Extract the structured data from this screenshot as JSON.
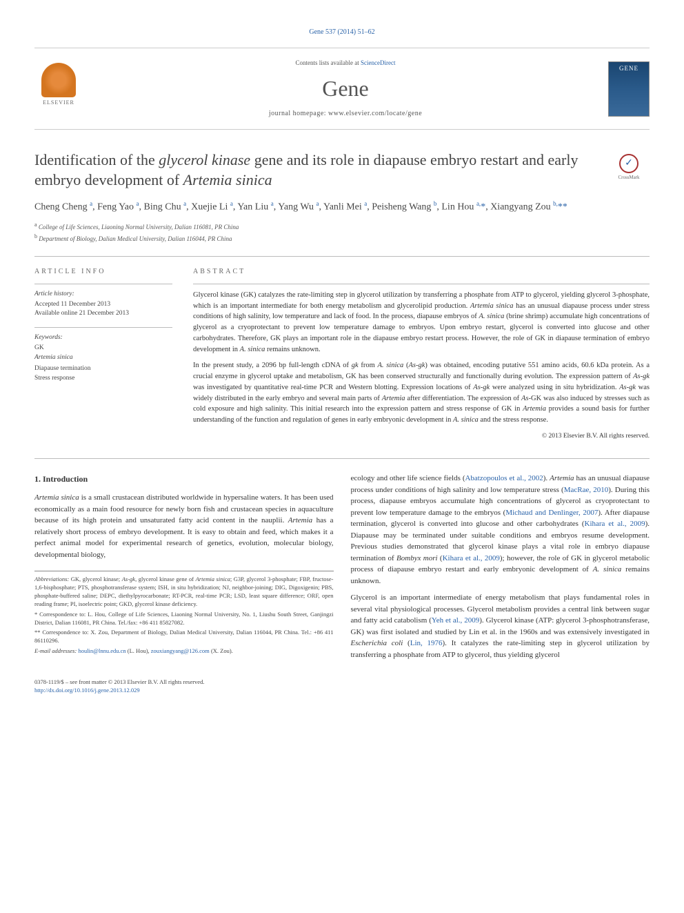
{
  "journalRef": "Gene 537 (2014) 51–62",
  "masthead": {
    "contentsPrefix": "Contents lists available at ",
    "contentsLink": "ScienceDirect",
    "journalTitle": "Gene",
    "homepage": "journal homepage: www.elsevier.com/locate/gene",
    "publisherName": "ELSEVIER"
  },
  "article": {
    "titleParts": [
      "Identification of the ",
      "glycerol kinase",
      " gene and its role in diapause embryo restart and early embryo development of ",
      "Artemia sinica"
    ],
    "crossmarkLabel": "CrossMark",
    "authorsHtml": "Cheng Cheng <sup>a</sup>, Feng Yao <sup>a</sup>, Bing Chu <sup>a</sup>, Xuejie Li <sup>a</sup>, Yan Liu <sup>a</sup>, Yang Wu <sup>a</sup>, Yanli Mei <sup>a</sup>, Peisheng Wang <sup>b</sup>, Lin Hou <sup>a,</sup><span class='corr'>*</span>, Xiangyang Zou <sup>b,</sup><span class='corr'>**</span>",
    "affiliations": [
      {
        "sup": "a",
        "text": "College of Life Sciences, Liaoning Normal University, Dalian 116081, PR China"
      },
      {
        "sup": "b",
        "text": "Department of Biology, Dalian Medical University, Dalian 116044, PR China"
      }
    ]
  },
  "articleInfoLabel": "ARTICLE INFO",
  "abstractLabel": "ABSTRACT",
  "history": {
    "heading": "Article history:",
    "accepted": "Accepted 11 December 2013",
    "online": "Available online 21 December 2013"
  },
  "keywords": {
    "heading": "Keywords:",
    "items": [
      "GK",
      "Artemia sinica",
      "Diapause termination",
      "Stress response"
    ]
  },
  "abstract": {
    "para1": "Glycerol kinase (GK) catalyzes the rate-limiting step in glycerol utilization by transferring a phosphate from ATP to glycerol, yielding glycerol 3-phosphate, which is an important intermediate for both energy metabolism and glycerolipid production. <em>Artemia sinica</em> has an unusual diapause process under stress conditions of high salinity, low temperature and lack of food. In the process, diapause embryos of <em>A. sinica</em> (brine shrimp) accumulate high concentrations of glycerol as a cryoprotectant to prevent low temperature damage to embryos. Upon embryo restart, glycerol is converted into glucose and other carbohydrates. Therefore, GK plays an important role in the diapause embryo restart process. However, the role of GK in diapause termination of embryo development in <em>A. sinica</em> remains unknown.",
    "para2": "In the present study, a 2096 bp full-length cDNA of <em>gk</em> from <em>A. sinica</em> (<em>As-gk</em>) was obtained, encoding putative 551 amino acids, 60.6 kDa protein. As a crucial enzyme in glycerol uptake and metabolism, GK has been conserved structurally and functionally during evolution. The expression pattern of <em>As-gk</em> was investigated by quantitative real-time PCR and Western blotting. Expression locations of <em>As-gk</em> were analyzed using in situ hybridization. <em>As-gk</em> was widely distributed in the early embryo and several main parts of <em>Artemia</em> after differentiation. The expression of <em>As</em>-GK was also induced by stresses such as cold exposure and high salinity. This initial research into the expression pattern and stress response of GK in <em>Artemia</em> provides a sound basis for further understanding of the function and regulation of genes in early embryonic development in <em>A. sinica</em> and the stress response.",
    "copyright": "© 2013 Elsevier B.V. All rights reserved."
  },
  "introHeading": "1. Introduction",
  "body": {
    "leftPara": "<em>Artemia sinica</em> is a small crustacean distributed worldwide in hypersaline waters. It has been used economically as a main food resource for newly born fish and crustacean species in aquaculture because of its high protein and unsaturated fatty acid content in the nauplii. <em>Artemia</em> has a relatively short process of embryo development. It is easy to obtain and feed, which makes it a perfect animal model for experimental research of genetics, evolution, molecular biology, developmental biology,",
    "rightPara1": "ecology and other life science fields (<a href='#'>Abatzopoulos et al., 2002</a>). <em>Artemia</em> has an unusual diapause process under conditions of high salinity and low temperature stress (<a href='#'>MacRae, 2010</a>). During this process, diapause embryos accumulate high concentrations of glycerol as cryoprotectant to prevent low temperature damage to the embryos (<a href='#'>Michaud and Denlinger, 2007</a>). After diapause termination, glycerol is converted into glucose and other carbohydrates (<a href='#'>Kihara et al., 2009</a>). Diapause may be terminated under suitable conditions and embryos resume development. Previous studies demonstrated that glycerol kinase plays a vital role in embryo diapause termination of <em>Bombyx mori</em> (<a href='#'>Kihara et al., 2009</a>); however, the role of GK in glycerol metabolic process of diapause embryo restart and early embryonic development of <em>A. sinica</em> remains unknown.",
    "rightPara2": "Glycerol is an important intermediate of energy metabolism that plays fundamental roles in several vital physiological processes. Glycerol metabolism provides a central link between sugar and fatty acid catabolism (<a href='#'>Yeh et al., 2009</a>). Glycerol kinase (ATP: glycerol 3-phosphotransferase, GK) was first isolated and studied by Lin et al. in the 1960s and was extensively investigated in <em>Escherichia coli</em> (<a href='#'>Lin, 1976</a>). It catalyzes the rate-limiting step in glycerol utilization by transferring a phosphate from ATP to glycerol, thus yielding glycerol"
  },
  "footnotes": {
    "abbrev": "<em>Abbreviations:</em> GK, glycerol kinase; <em>As-gk</em>, glycerol kinase gene of <em>Artemia sinica</em>; G3P, glycerol 3-phosphate; FBP, fructose-1,6-bisphosphate; PTS, phosphotransferase system; ISH, in situ hybridization; NJ, neighbor-joining; DIG, Digoxigenin; PBS, phosphate-buffered saline; DEPC, diethylpyrocarbonate; RT-PCR, real-time PCR; LSD, least square difference; ORF, open reading frame; PI, isoelectric point; GKD, glycerol kinase deficiency.",
    "corr1": "* Correspondence to: L. Hou, College of Life Sciences, Liaoning Normal University, No. 1, Liushu South Street, Ganjingzi District, Dalian 116081, PR China. Tel./fax: +86 411 85827082.",
    "corr2": "** Correspondence to: X. Zou, Department of Biology, Dalian Medical University, Dalian 116044, PR China. Tel.: +86 411 86110296.",
    "email": "<em>E-mail addresses:</em> <a href='#'>houlin@lnnu.edu.cn</a> (L. Hou), <a href='#'>zouxiangyang@126.com</a> (X. Zou)."
  },
  "bottom": {
    "line1": "0378-1119/$ – see front matter © 2013 Elsevier B.V. All rights reserved.",
    "doi": "http://dx.doi.org/10.1016/j.gene.2013.12.029"
  }
}
